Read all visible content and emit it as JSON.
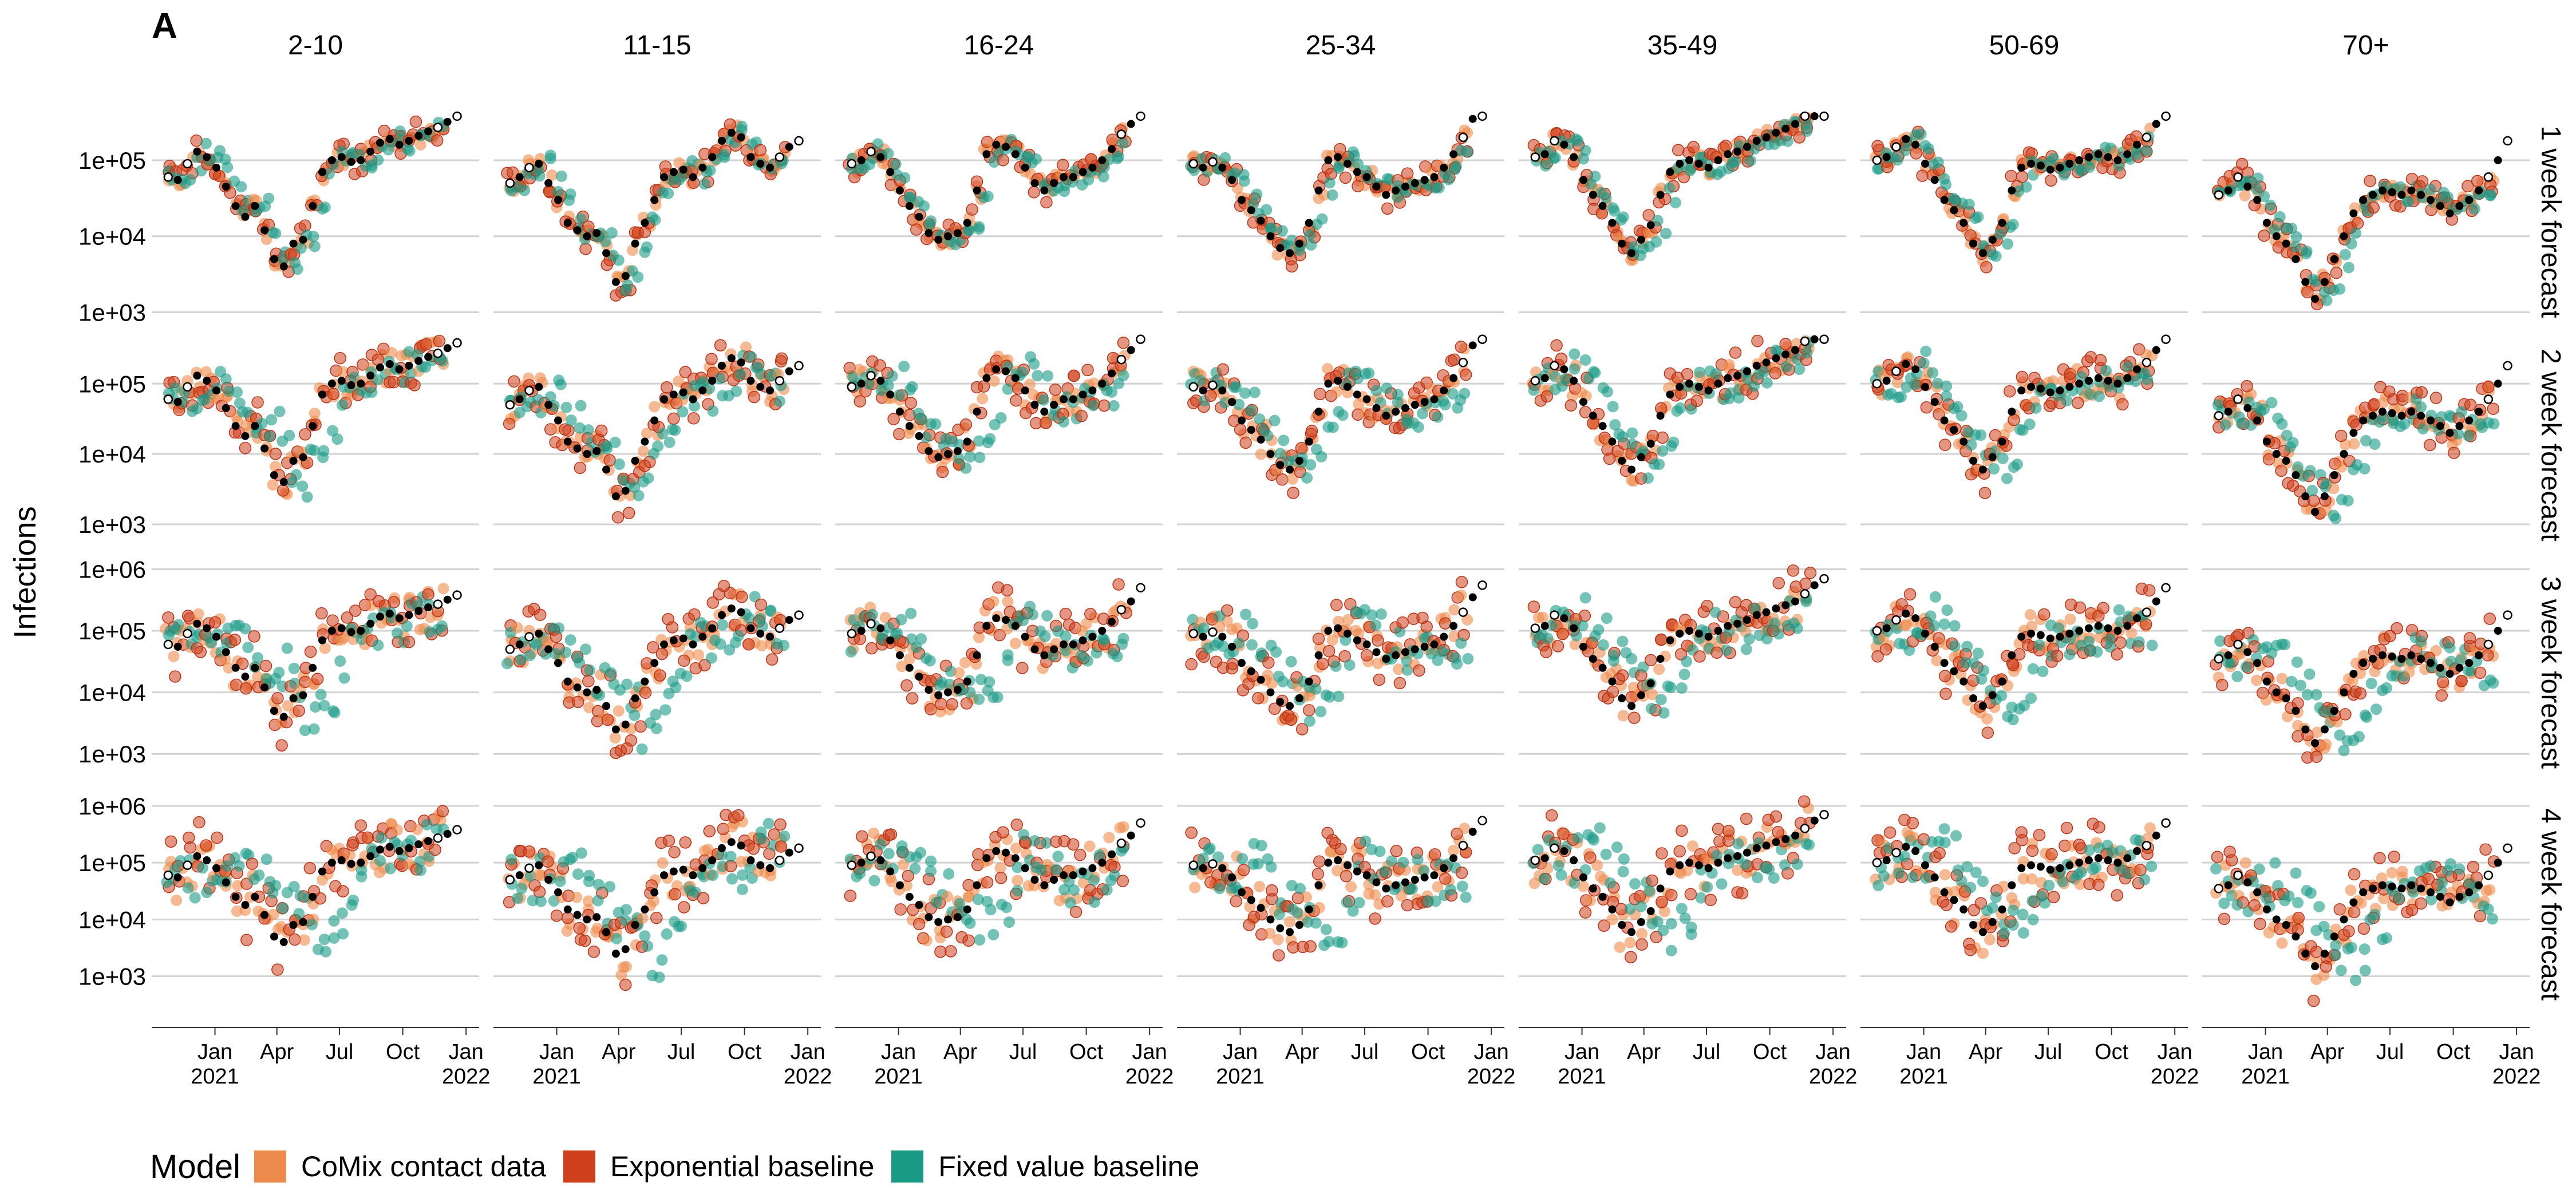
{
  "panel_label": "A",
  "legend": {
    "title": "Model",
    "items": [
      {
        "label": "CoMix contact data",
        "color": "#ee8a4b"
      },
      {
        "label": "Exponential baseline",
        "color": "#d03f1c"
      },
      {
        "label": "Fixed value baseline",
        "color": "#199a85"
      }
    ]
  },
  "chart_data": {
    "type": "scatter",
    "ylabel": "Infections",
    "xlabel": "",
    "y_scale": "log10",
    "columns": [
      "2-10",
      "11-15",
      "16-24",
      "25-34",
      "35-49",
      "50-69",
      "70+"
    ],
    "rows": [
      "1 week forecast",
      "2 week forecast",
      "3 week forecast",
      "4 week forecast"
    ],
    "x_ticks": [
      {
        "date": "2021-01-01",
        "label": [
          "Jan",
          "2021"
        ]
      },
      {
        "date": "2021-04-01",
        "label": [
          "Apr",
          ""
        ]
      },
      {
        "date": "2021-07-01",
        "label": [
          "Jul",
          ""
        ]
      },
      {
        "date": "2021-10-01",
        "label": [
          "Oct",
          ""
        ]
      },
      {
        "date": "2022-01-01",
        "label": [
          "Jan",
          "2022"
        ]
      }
    ],
    "x_range": [
      "2020-10-01",
      "2022-01-20"
    ],
    "row_y_ticks": [
      [
        "1e+03",
        "1e+04",
        "1e+05"
      ],
      [
        "1e+03",
        "1e+04",
        "1e+05"
      ],
      [
        "1e+03",
        "1e+04",
        "1e+05",
        "1e+06"
      ],
      [
        "1e+03",
        "1e+04",
        "1e+05",
        "1e+06"
      ]
    ],
    "row_y_ranges": [
      [
        600,
        400000
      ],
      [
        400,
        450000
      ],
      [
        400,
        1100000
      ],
      [
        200,
        1700000
      ]
    ],
    "dates": [
      "2020-10-25",
      "2020-11-08",
      "2020-11-22",
      "2020-12-06",
      "2020-12-20",
      "2021-01-03",
      "2021-01-17",
      "2021-01-31",
      "2021-02-14",
      "2021-02-28",
      "2021-03-14",
      "2021-03-28",
      "2021-04-11",
      "2021-04-25",
      "2021-05-09",
      "2021-05-23",
      "2021-06-06",
      "2021-06-20",
      "2021-07-04",
      "2021-07-18",
      "2021-08-01",
      "2021-08-15",
      "2021-08-29",
      "2021-09-12",
      "2021-09-26",
      "2021-10-10",
      "2021-10-24",
      "2021-11-07",
      "2021-11-21",
      "2021-12-05",
      "2021-12-19"
    ],
    "observed": [
      [
        60000,
        55000,
        90000,
        130000,
        110000,
        80000,
        45000,
        25000,
        18000,
        25000,
        12000,
        5000,
        4000,
        8000,
        9000,
        25000,
        70000,
        100000,
        110000,
        95000,
        100000,
        130000,
        170000,
        190000,
        160000,
        180000,
        210000,
        240000,
        270000,
        320000,
        380000
      ],
      [
        50000,
        60000,
        80000,
        90000,
        50000,
        30000,
        15000,
        12000,
        10000,
        11000,
        6000,
        2500,
        3000,
        8000,
        15000,
        30000,
        60000,
        70000,
        75000,
        60000,
        80000,
        110000,
        180000,
        230000,
        200000,
        110000,
        90000,
        80000,
        110000,
        150000,
        180000
      ],
      [
        90000,
        100000,
        130000,
        110000,
        70000,
        40000,
        25000,
        18000,
        11000,
        9000,
        10000,
        11000,
        15000,
        40000,
        120000,
        160000,
        150000,
        120000,
        80000,
        50000,
        40000,
        50000,
        60000,
        60000,
        70000,
        80000,
        100000,
        140000,
        220000,
        300000,
        500000
      ],
      [
        90000,
        80000,
        95000,
        80000,
        55000,
        30000,
        22000,
        16000,
        10000,
        7000,
        6000,
        8000,
        15000,
        40000,
        100000,
        110000,
        90000,
        70000,
        60000,
        45000,
        35000,
        40000,
        45000,
        50000,
        55000,
        60000,
        80000,
        120000,
        200000,
        350000,
        550000
      ],
      [
        110000,
        120000,
        180000,
        160000,
        110000,
        55000,
        35000,
        25000,
        15000,
        8000,
        6000,
        9000,
        14000,
        35000,
        70000,
        90000,
        100000,
        90000,
        80000,
        100000,
        120000,
        130000,
        150000,
        180000,
        200000,
        230000,
        260000,
        300000,
        400000,
        550000,
        700000
      ],
      [
        100000,
        110000,
        150000,
        190000,
        160000,
        90000,
        55000,
        30000,
        22000,
        15000,
        8000,
        6000,
        9000,
        15000,
        40000,
        80000,
        90000,
        85000,
        75000,
        80000,
        90000,
        100000,
        110000,
        120000,
        110000,
        100000,
        120000,
        160000,
        200000,
        300000,
        500000
      ],
      [
        35000,
        40000,
        60000,
        45000,
        30000,
        15000,
        10000,
        8000,
        5000,
        2500,
        1500,
        2500,
        5000,
        10000,
        20000,
        30000,
        35000,
        40000,
        38000,
        35000,
        40000,
        35000,
        30000,
        25000,
        20000,
        25000,
        30000,
        40000,
        60000,
        100000,
        180000
      ]
    ],
    "models": [
      "CoMix contact data",
      "Exponential baseline",
      "Fixed value baseline"
    ]
  }
}
